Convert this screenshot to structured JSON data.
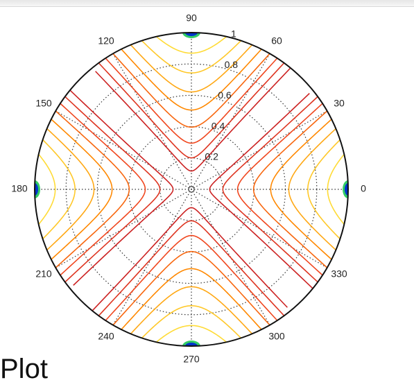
{
  "caption": "Plot",
  "chart_data": {
    "type": "polar-contour",
    "title": "",
    "angular_ticks": [
      "0",
      "30",
      "60",
      "90",
      "120",
      "150",
      "180",
      "210",
      "240",
      "270",
      "300",
      "330"
    ],
    "angular_tick_degrees": [
      0,
      30,
      60,
      90,
      120,
      150,
      180,
      210,
      240,
      270,
      300,
      330
    ],
    "radial_ticks": [
      "0.2",
      "0.4",
      "0.6",
      "0.8",
      "1"
    ],
    "radial_tick_values": [
      0.2,
      0.4,
      0.6,
      0.8,
      1
    ],
    "rlim": [
      0,
      1
    ],
    "grid": true,
    "grid_style": "dotted",
    "colormap": "jet",
    "contour_levels": [
      0.2,
      0.3,
      0.4,
      0.5,
      0.6,
      0.7,
      0.8,
      0.9,
      1.0
    ],
    "field": "value = r^n * |cos(2*theta)| (peaks at 0, 90, 180, 270 degrees on the outer rim)",
    "colors": {
      "outline": "#111111",
      "grid": "#333333",
      "low": "#cc2222",
      "mid": "#ff8800",
      "high": "#ffee44",
      "peak": "#0033cc"
    }
  }
}
